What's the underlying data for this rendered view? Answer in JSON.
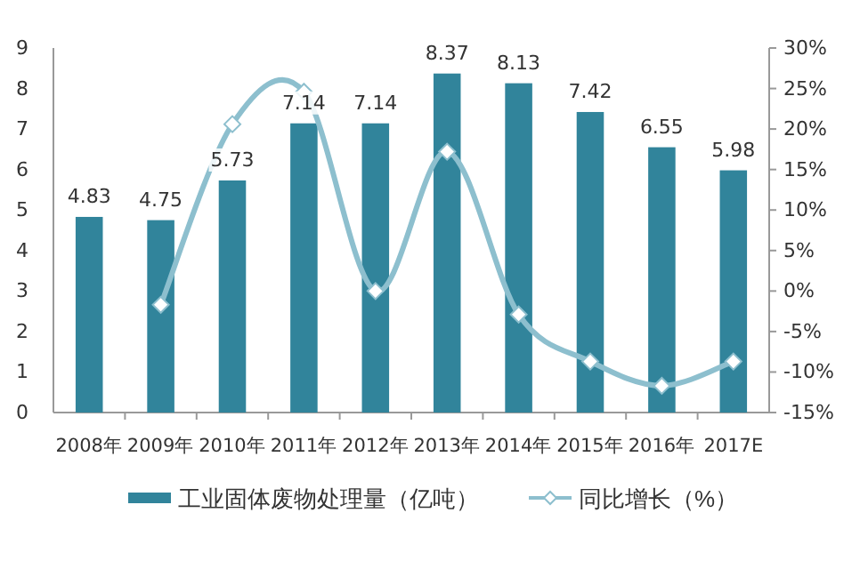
{
  "chart_data": {
    "type": "bar",
    "categories": [
      "2008年",
      "2009年",
      "2010年",
      "2011年",
      "2012年",
      "2013年",
      "2014年",
      "2015年",
      "2016年",
      "2017E"
    ],
    "series": [
      {
        "name": "工业固体废物处理量（亿吨）",
        "color": "#31849b",
        "values": [
          4.83,
          4.75,
          5.73,
          7.14,
          7.14,
          8.37,
          8.13,
          7.42,
          6.55,
          5.98
        ],
        "value_labels": [
          "4.83",
          "4.75",
          "5.73",
          "7.14",
          "7.14",
          "8.37",
          "8.13",
          "7.42",
          "6.55",
          "5.98"
        ]
      },
      {
        "name": "同比增长（%）",
        "type": "line",
        "axis": "y2",
        "color": "#8dbfce",
        "marker": "diamond",
        "values": [
          null,
          -1.7,
          20.6,
          24.6,
          0,
          17.2,
          -2.9,
          -8.7,
          -11.7,
          -8.7
        ]
      }
    ],
    "ylim": [
      0,
      9
    ],
    "yticks": [
      0,
      1,
      2,
      3,
      4,
      5,
      6,
      7,
      8,
      9
    ],
    "y2lim": [
      -15,
      30
    ],
    "y2ticks": [
      {
        "value": -15,
        "label": "-15%"
      },
      {
        "value": -10,
        "label": "-10%"
      },
      {
        "value": -5,
        "label": "-5%"
      },
      {
        "value": 0,
        "label": "0%"
      },
      {
        "value": 5,
        "label": "5%"
      },
      {
        "value": 10,
        "label": "10%"
      },
      {
        "value": 15,
        "label": "15%"
      },
      {
        "value": 20,
        "label": "20%"
      },
      {
        "value": 25,
        "label": "25%"
      },
      {
        "value": 30,
        "label": "30%"
      }
    ],
    "legend": "bottom",
    "grid": false
  }
}
